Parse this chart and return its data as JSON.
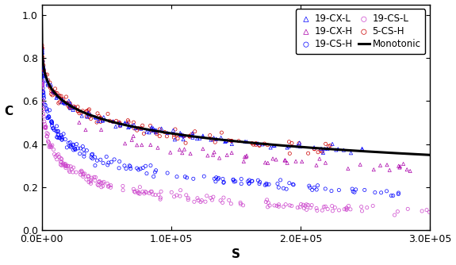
{
  "title": "",
  "xlabel": "S",
  "ylabel": "C",
  "xlim": [
    0,
    300000
  ],
  "ylim": [
    0.0,
    1.05
  ],
  "xticks": [
    0,
    100000,
    200000,
    300000
  ],
  "xtick_labels": [
    "0.0E+00",
    "1.0E+05",
    "2.0E+05",
    "3.0E+05"
  ],
  "yticks": [
    0.0,
    0.2,
    0.4,
    0.6,
    0.8,
    1.0
  ],
  "series": {
    "19-CX-L": {
      "color": "#0000FF",
      "marker": "^",
      "markersize": 3.5
    },
    "19-CX-H": {
      "color": "#AA00AA",
      "marker": "^",
      "markersize": 3.5
    },
    "19-CS-H": {
      "color": "#0000FF",
      "marker": "o",
      "markersize": 3.5
    },
    "19-CS-L": {
      "color": "#CC44CC",
      "marker": "o",
      "markersize": 3.5
    },
    "5-CS-H": {
      "color": "#CC0000",
      "marker": "o",
      "markersize": 3.5
    },
    "Monotonic": {
      "color": "#000000",
      "linewidth": 2.2
    }
  },
  "background_color": "#ffffff",
  "legend_fontsize": 8.5,
  "axis_label_fontsize": 11,
  "tick_fontsize": 9,
  "figsize": [
    5.75,
    3.34
  ],
  "dpi": 100
}
